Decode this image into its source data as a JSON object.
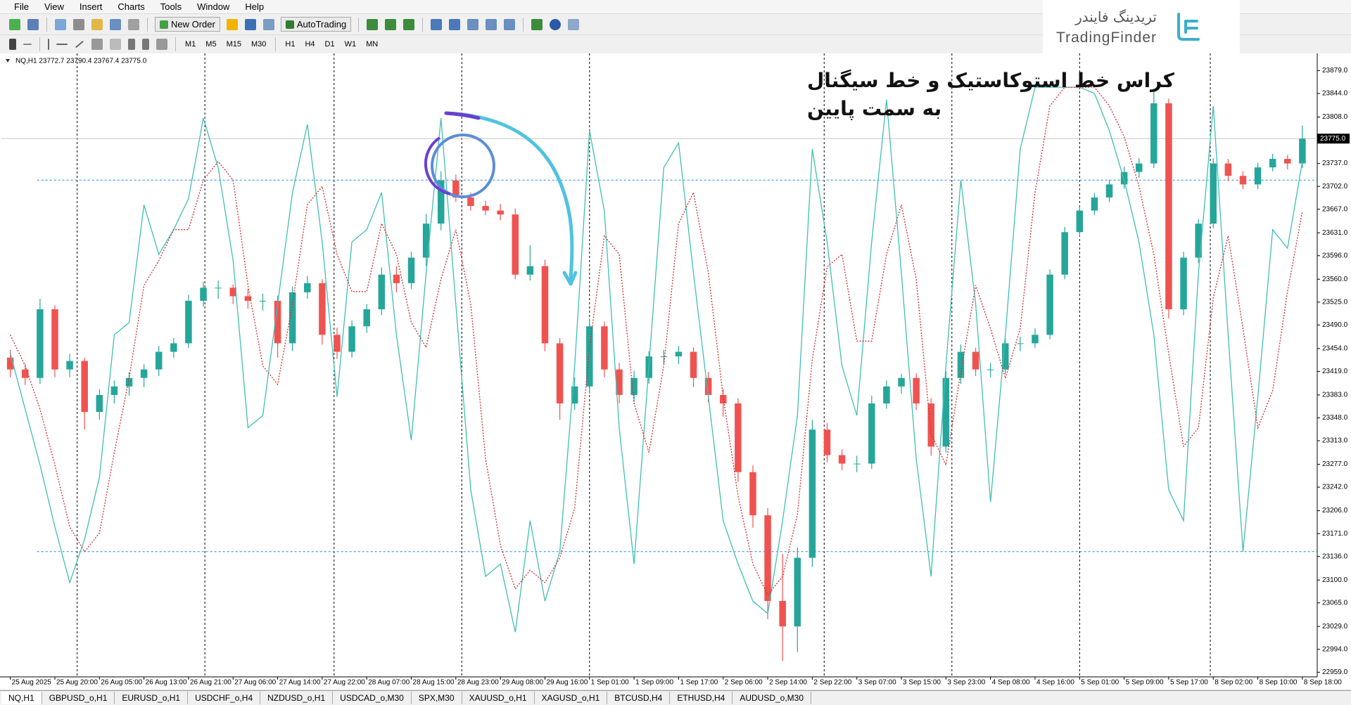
{
  "ui": {
    "menu": [
      "File",
      "View",
      "Insert",
      "Charts",
      "Tools",
      "Window",
      "Help"
    ],
    "new_order": "New Order",
    "auto_trading": "AutoTrading",
    "timeframes": [
      "M1",
      "M5",
      "M15",
      "M30",
      "H1",
      "H4",
      "D1",
      "W1",
      "MN"
    ],
    "tabs": [
      "NQ,H1",
      "GBPUSD_o,H1",
      "EURUSD_o,H1",
      "USDCHF_o,H4",
      "NZDUSD_o,H1",
      "USDCAD_o,M30",
      "SPX,M30",
      "XAUUSD_o,H1",
      "XAGUSD_o,H1",
      "BTCUSD,H4",
      "ETHUSD,H4",
      "AUDUSD_o,M30"
    ],
    "logo_fa": "تریدینگ فایندر",
    "logo_en": "TradingFinder"
  },
  "chart_data": {
    "type": "candlestick",
    "title": "NQ,H1  23772.7 23790.4 23767.4 23775.0",
    "annotation": [
      "کراس خط استوکاستیک و خط سیگنال",
      "به سمت پایین"
    ],
    "color_up": "#26a69a",
    "color_down": "#ef5350",
    "xlim": [
      -0.6,
      88
    ],
    "xticks": [
      {
        "value": 0,
        "label": "25 Aug 2025"
      },
      {
        "value": 3,
        "label": "25 Aug 20:00"
      },
      {
        "value": 6,
        "label": "26 Aug 05:00"
      },
      {
        "value": 9,
        "label": "26 Aug 13:00"
      },
      {
        "value": 12,
        "label": "26 Aug 21:00"
      },
      {
        "value": 15,
        "label": "27 Aug 06:00"
      },
      {
        "value": 18,
        "label": "27 Aug 14:00"
      },
      {
        "value": 21,
        "label": "27 Aug 22:00"
      },
      {
        "value": 24,
        "label": "28 Aug 07:00"
      },
      {
        "value": 27,
        "label": "28 Aug 15:00"
      },
      {
        "value": 30,
        "label": "28 Aug 23:00"
      },
      {
        "value": 33,
        "label": "29 Aug 08:00"
      },
      {
        "value": 36,
        "label": "29 Aug 16:00"
      },
      {
        "value": 39,
        "label": "1 Sep 01:00"
      },
      {
        "value": 42,
        "label": "1 Sep 09:00"
      },
      {
        "value": 45,
        "label": "1 Sep 17:00"
      },
      {
        "value": 48,
        "label": "2 Sep 06:00"
      },
      {
        "value": 51,
        "label": "2 Sep 14:00"
      },
      {
        "value": 54,
        "label": "2 Sep 22:00"
      },
      {
        "value": 57,
        "label": "3 Sep 07:00"
      },
      {
        "value": 60,
        "label": "3 Sep 15:00"
      },
      {
        "value": 63,
        "label": "3 Sep 23:00"
      },
      {
        "value": 66,
        "label": "4 Sep 08:00"
      },
      {
        "value": 69,
        "label": "4 Sep 16:00"
      },
      {
        "value": 72,
        "label": "5 Sep 01:00"
      },
      {
        "value": 75,
        "label": "5 Sep 09:00"
      },
      {
        "value": 78,
        "label": "5 Sep 17:00"
      },
      {
        "value": 81,
        "label": "8 Sep 02:00"
      },
      {
        "value": 84,
        "label": "8 Sep 10:00"
      },
      {
        "value": 87,
        "label": "8 Sep 18:00"
      }
    ],
    "ylim": [
      22954,
      23901
    ],
    "yticks": [
      {
        "value": 23879,
        "label": "23879.0"
      },
      {
        "value": 23844,
        "label": "23844.0"
      },
      {
        "value": 23808,
        "label": "23808.0"
      },
      {
        "value": 23737,
        "label": "23737.0"
      },
      {
        "value": 23702,
        "label": "23702.0"
      },
      {
        "value": 23667,
        "label": "23667.0"
      },
      {
        "value": 23631,
        "label": "23631.0"
      },
      {
        "value": 23596,
        "label": "23596.0"
      },
      {
        "value": 23560,
        "label": "23560.0"
      },
      {
        "value": 23525,
        "label": "23525.0"
      },
      {
        "value": 23490,
        "label": "23490.0"
      },
      {
        "value": 23454,
        "label": "23454.0"
      },
      {
        "value": 23419,
        "label": "23419.0"
      },
      {
        "value": 23383,
        "label": "23383.0"
      },
      {
        "value": 23348,
        "label": "23348.0"
      },
      {
        "value": 23313,
        "label": "23313.0"
      },
      {
        "value": 23277,
        "label": "23277.0"
      },
      {
        "value": 23242,
        "label": "23242.0"
      },
      {
        "value": 23206,
        "label": "23206.0"
      },
      {
        "value": 23171,
        "label": "23171.0"
      },
      {
        "value": 23136,
        "label": "23136.0"
      },
      {
        "value": 23100,
        "label": "23100.0"
      },
      {
        "value": 23065,
        "label": "23065.0"
      },
      {
        "value": 23029,
        "label": "23029.0"
      },
      {
        "value": 22994,
        "label": "22994.0"
      },
      {
        "value": 22959,
        "label": "22959.0"
      }
    ],
    "last_price": {
      "value": 23775,
      "label": "23775.0"
    },
    "open": [
      23440,
      23422,
      23409,
      23514,
      23422,
      23435,
      23357,
      23383,
      23396,
      23409,
      23422,
      23449,
      23462,
      23527,
      23547,
      23547,
      23534,
      23527,
      23527,
      23462,
      23540,
      23554,
      23475,
      23449,
      23488,
      23514,
      23567,
      23554,
      23593,
      23645,
      23711,
      23685,
      23672,
      23665,
      23659,
      23567,
      23580,
      23462,
      23370,
      23396,
      23488,
      23422,
      23383,
      23409,
      23442,
      23442,
      23449,
      23409,
      23383,
      23370,
      23265,
      23199,
      23068,
      23029,
      23134,
      23330,
      23291,
      23278,
      23278,
      23370,
      23396,
      23409,
      23370,
      23304,
      23409,
      23449,
      23422,
      23422,
      23462,
      23462,
      23475,
      23567,
      23632,
      23665,
      23685,
      23705,
      23724,
      23737,
      23829,
      23514,
      23593,
      23645,
      23737,
      23718,
      23705,
      23731,
      23744,
      23737
    ],
    "high": [
      23452,
      23430,
      23530,
      23520,
      23446,
      23440,
      23392,
      23405,
      23418,
      23430,
      23458,
      23470,
      23536,
      23556,
      23558,
      23552,
      23545,
      23538,
      23535,
      23549,
      23565,
      23560,
      23486,
      23497,
      23522,
      23578,
      23580,
      23602,
      23660,
      23725,
      23720,
      23692,
      23680,
      23675,
      23668,
      23612,
      23590,
      23470,
      23410,
      23500,
      23495,
      23432,
      23420,
      23450,
      23452,
      23458,
      23456,
      23418,
      23392,
      23378,
      23275,
      23210,
      23140,
      23150,
      23345,
      23340,
      23300,
      23290,
      23382,
      23405,
      23415,
      23416,
      23378,
      23420,
      23460,
      23455,
      23432,
      23470,
      23472,
      23485,
      23575,
      23640,
      23672,
      23692,
      23712,
      23732,
      23745,
      23851,
      23836,
      23602,
      23652,
      23745,
      23744,
      23725,
      23738,
      23752,
      23750,
      23795
    ],
    "low": [
      23410,
      23398,
      23400,
      23410,
      23410,
      23330,
      23345,
      23370,
      23382,
      23395,
      23412,
      23440,
      23455,
      23518,
      23530,
      23522,
      23515,
      23512,
      23440,
      23450,
      23530,
      23460,
      23438,
      23440,
      23478,
      23505,
      23540,
      23545,
      23580,
      23635,
      23678,
      23665,
      23658,
      23650,
      23560,
      23558,
      23450,
      23345,
      23360,
      23385,
      23410,
      23370,
      23372,
      23400,
      23430,
      23430,
      23395,
      23372,
      23350,
      23250,
      23180,
      23040,
      22976,
      22990,
      23120,
      23280,
      23268,
      23265,
      23270,
      23362,
      23385,
      23360,
      23290,
      23295,
      23400,
      23412,
      23410,
      23415,
      23450,
      23455,
      23468,
      23560,
      23625,
      23658,
      23678,
      23698,
      23715,
      23730,
      23500,
      23505,
      23585,
      23638,
      23710,
      23698,
      23698,
      23725,
      23728,
      23730
    ],
    "close": [
      23422,
      23409,
      23514,
      23422,
      23435,
      23357,
      23383,
      23396,
      23409,
      23422,
      23449,
      23462,
      23527,
      23547,
      23547,
      23534,
      23527,
      23527,
      23462,
      23540,
      23554,
      23475,
      23449,
      23488,
      23514,
      23567,
      23554,
      23593,
      23645,
      23711,
      23685,
      23672,
      23665,
      23659,
      23567,
      23580,
      23462,
      23370,
      23396,
      23488,
      23422,
      23383,
      23409,
      23442,
      23442,
      23449,
      23409,
      23383,
      23370,
      23265,
      23199,
      23068,
      23029,
      23134,
      23330,
      23291,
      23278,
      23278,
      23370,
      23396,
      23409,
      23370,
      23304,
      23409,
      23449,
      23422,
      23422,
      23462,
      23462,
      23475,
      23567,
      23632,
      23665,
      23685,
      23705,
      23724,
      23737,
      23829,
      23514,
      23593,
      23645,
      23737,
      23718,
      23705,
      23731,
      23744,
      23737,
      23775
    ],
    "stochastic": {
      "ylim": [
        0,
        100
      ],
      "levels": [
        20,
        80
      ],
      "level_color": "#1e88e5",
      "series": [
        {
          "color": "#3fbfb3",
          "values": [
            52,
            43,
            34,
            24,
            15,
            22,
            32,
            55,
            57,
            76,
            68,
            72,
            77,
            90,
            82,
            67,
            40,
            42,
            60,
            78,
            89,
            70,
            45,
            70,
            72,
            78,
            55,
            38,
            65,
            90,
            60,
            30,
            16,
            18,
            7,
            25,
            12,
            20,
            50,
            88,
            75,
            40,
            18,
            50,
            82,
            86,
            65,
            45,
            25,
            18,
            12,
            10,
            25,
            42,
            85,
            70,
            50,
            42,
            70,
            93,
            65,
            35,
            16,
            50,
            80,
            60,
            28,
            55,
            85,
            95,
            95,
            95,
            95,
            94,
            88,
            80,
            70,
            55,
            30,
            25,
            65,
            92,
            55,
            20,
            45,
            72,
            69,
            83
          ]
        },
        {
          "color": "#d32f2f",
          "values": [
            55,
            50,
            43,
            34,
            24,
            20,
            23,
            36,
            48,
            63,
            67,
            72,
            72,
            80,
            83,
            80,
            63,
            50,
            47,
            60,
            76,
            79,
            68,
            62,
            62,
            73,
            68,
            57,
            53,
            64,
            72,
            60,
            35,
            21,
            14,
            17,
            15,
            19,
            27,
            53,
            71,
            68,
            44,
            36,
            50,
            73,
            78,
            65,
            45,
            29,
            18,
            13,
            16,
            26,
            51,
            66,
            68,
            54,
            54,
            68,
            76,
            64,
            39,
            34,
            49,
            63,
            56,
            48,
            56,
            78,
            92,
            95,
            95,
            95,
            92,
            87,
            79,
            68,
            52,
            37,
            40,
            61,
            71,
            56,
            40,
            46,
            62,
            75
          ]
        }
      ]
    }
  }
}
